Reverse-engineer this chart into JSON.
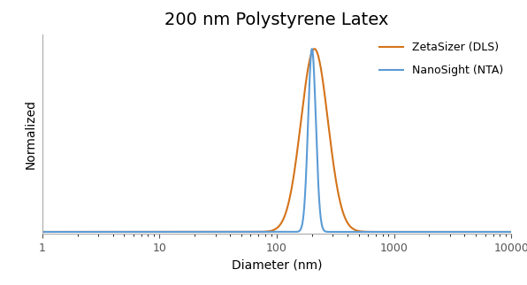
{
  "title": "200 nm Polystyrene Latex",
  "xlabel": "Diameter (nm)",
  "ylabel": "Normalized",
  "x_ticks": [
    1,
    10,
    100,
    1000,
    10000
  ],
  "x_tick_labels": [
    "1",
    "10",
    "100",
    "1000",
    "10000"
  ],
  "dls_label": "ZetaSizer (DLS)",
  "nta_label": "NanoSight (NTA)",
  "dls_color": "#D4731A",
  "nta_color": "#5B9BD5",
  "dls_peak": 210,
  "dls_sigma": 0.115,
  "nta_peak": 200,
  "nta_sigma": 0.033,
  "background_color": "#ffffff",
  "grid_color": "#d0d0d0",
  "title_fontsize": 14,
  "label_fontsize": 10,
  "tick_fontsize": 9,
  "legend_fontsize": 9,
  "line_width": 1.5
}
